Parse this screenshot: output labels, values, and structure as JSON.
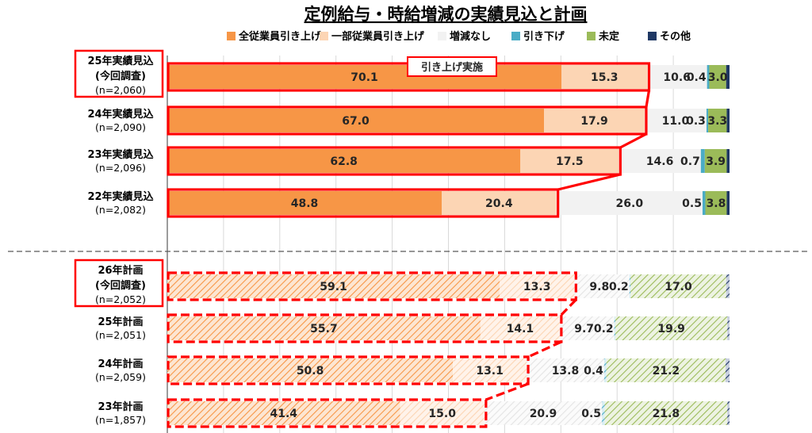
{
  "chart_data": {
    "type": "bar",
    "orientation": "horizontal",
    "stacked": true,
    "title": "定例給与・時給増減の実績見込と計画",
    "legend_position": "top",
    "series_names": [
      "全従業員引き上げ",
      "一部従業員引き上げ",
      "増減なし",
      "引き下げ",
      "未定",
      "その他"
    ],
    "colors": [
      "#F79646",
      "#FCD5B4",
      "#F2F2F2",
      "#4BACC6",
      "#9BBB59",
      "#1F3864"
    ],
    "callout": "引き上げ実施",
    "groups": [
      {
        "kind": "actual",
        "rows": [
          {
            "label": "25年実績見込",
            "sublabel": "(今回調査)",
            "n": "(n=2,060)",
            "values": [
              70.1,
              15.3,
              10.6,
              0.4,
              3.0,
              0.6
            ]
          },
          {
            "label": "24年実績見込",
            "sublabel": "",
            "n": "(n=2,090)",
            "values": [
              67.0,
              17.9,
              11.0,
              0.3,
              3.3,
              0.5
            ]
          },
          {
            "label": "23年実績見込",
            "sublabel": "",
            "n": "(n=2,096)",
            "values": [
              62.8,
              17.5,
              14.6,
              0.7,
              3.9,
              0.5
            ]
          },
          {
            "label": "22年実績見込",
            "sublabel": "",
            "n": "(n=2,082)",
            "values": [
              48.8,
              20.4,
              26.0,
              0.5,
              3.8,
              0.5
            ]
          }
        ]
      },
      {
        "kind": "plan",
        "rows": [
          {
            "label": "26年計画",
            "sublabel": "(今回調査)",
            "n": "(n=2,052)",
            "values": [
              59.1,
              13.3,
              9.8,
              0.2,
              17.0,
              0.6
            ]
          },
          {
            "label": "25年計画",
            "sublabel": "",
            "n": "(n=2,051)",
            "values": [
              55.7,
              14.1,
              9.7,
              0.2,
              19.9,
              0.4
            ]
          },
          {
            "label": "24年計画",
            "sublabel": "",
            "n": "(n=2,059)",
            "values": [
              50.8,
              13.1,
              13.8,
              0.4,
              21.2,
              0.7
            ]
          },
          {
            "label": "23年計画",
            "sublabel": "",
            "n": "(n=1,857)",
            "values": [
              41.4,
              15.0,
              20.9,
              0.5,
              21.8,
              0.4
            ]
          }
        ]
      }
    ],
    "xlim": [
      0,
      100
    ]
  }
}
